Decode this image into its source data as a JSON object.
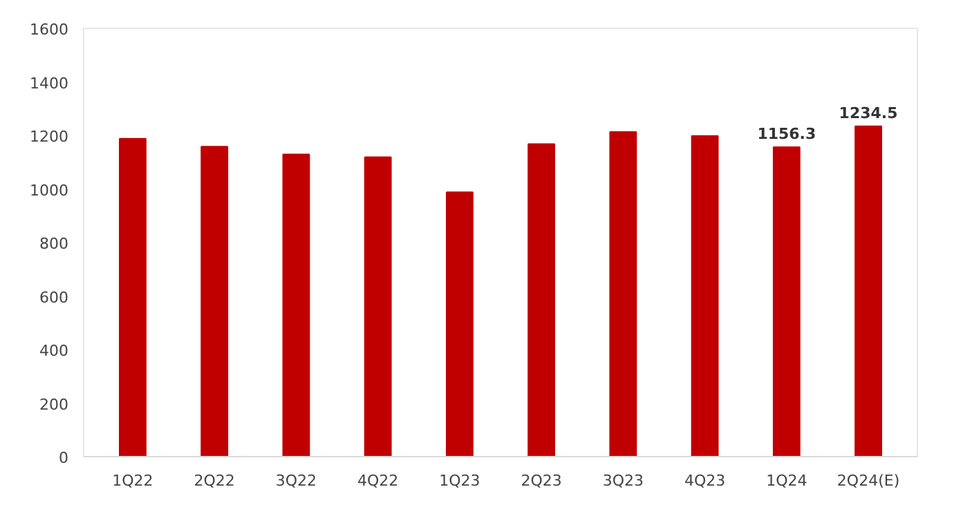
{
  "chart_data": {
    "type": "bar",
    "categories": [
      "1Q22",
      "2Q22",
      "3Q22",
      "4Q22",
      "1Q23",
      "2Q23",
      "3Q23",
      "4Q23",
      "1Q24",
      "2Q24(E)"
    ],
    "values": [
      1188,
      1158,
      1129,
      1119,
      988,
      1168,
      1213,
      1198,
      1156.3,
      1234.5
    ],
    "value_labels": [
      null,
      null,
      null,
      null,
      null,
      null,
      null,
      null,
      "1156.3",
      "1234.5"
    ],
    "color": "#c00000",
    "ylim": [
      0,
      1600
    ],
    "yticks": [
      0,
      200,
      400,
      600,
      800,
      1000,
      1200,
      1400,
      1600
    ],
    "grid": false
  }
}
